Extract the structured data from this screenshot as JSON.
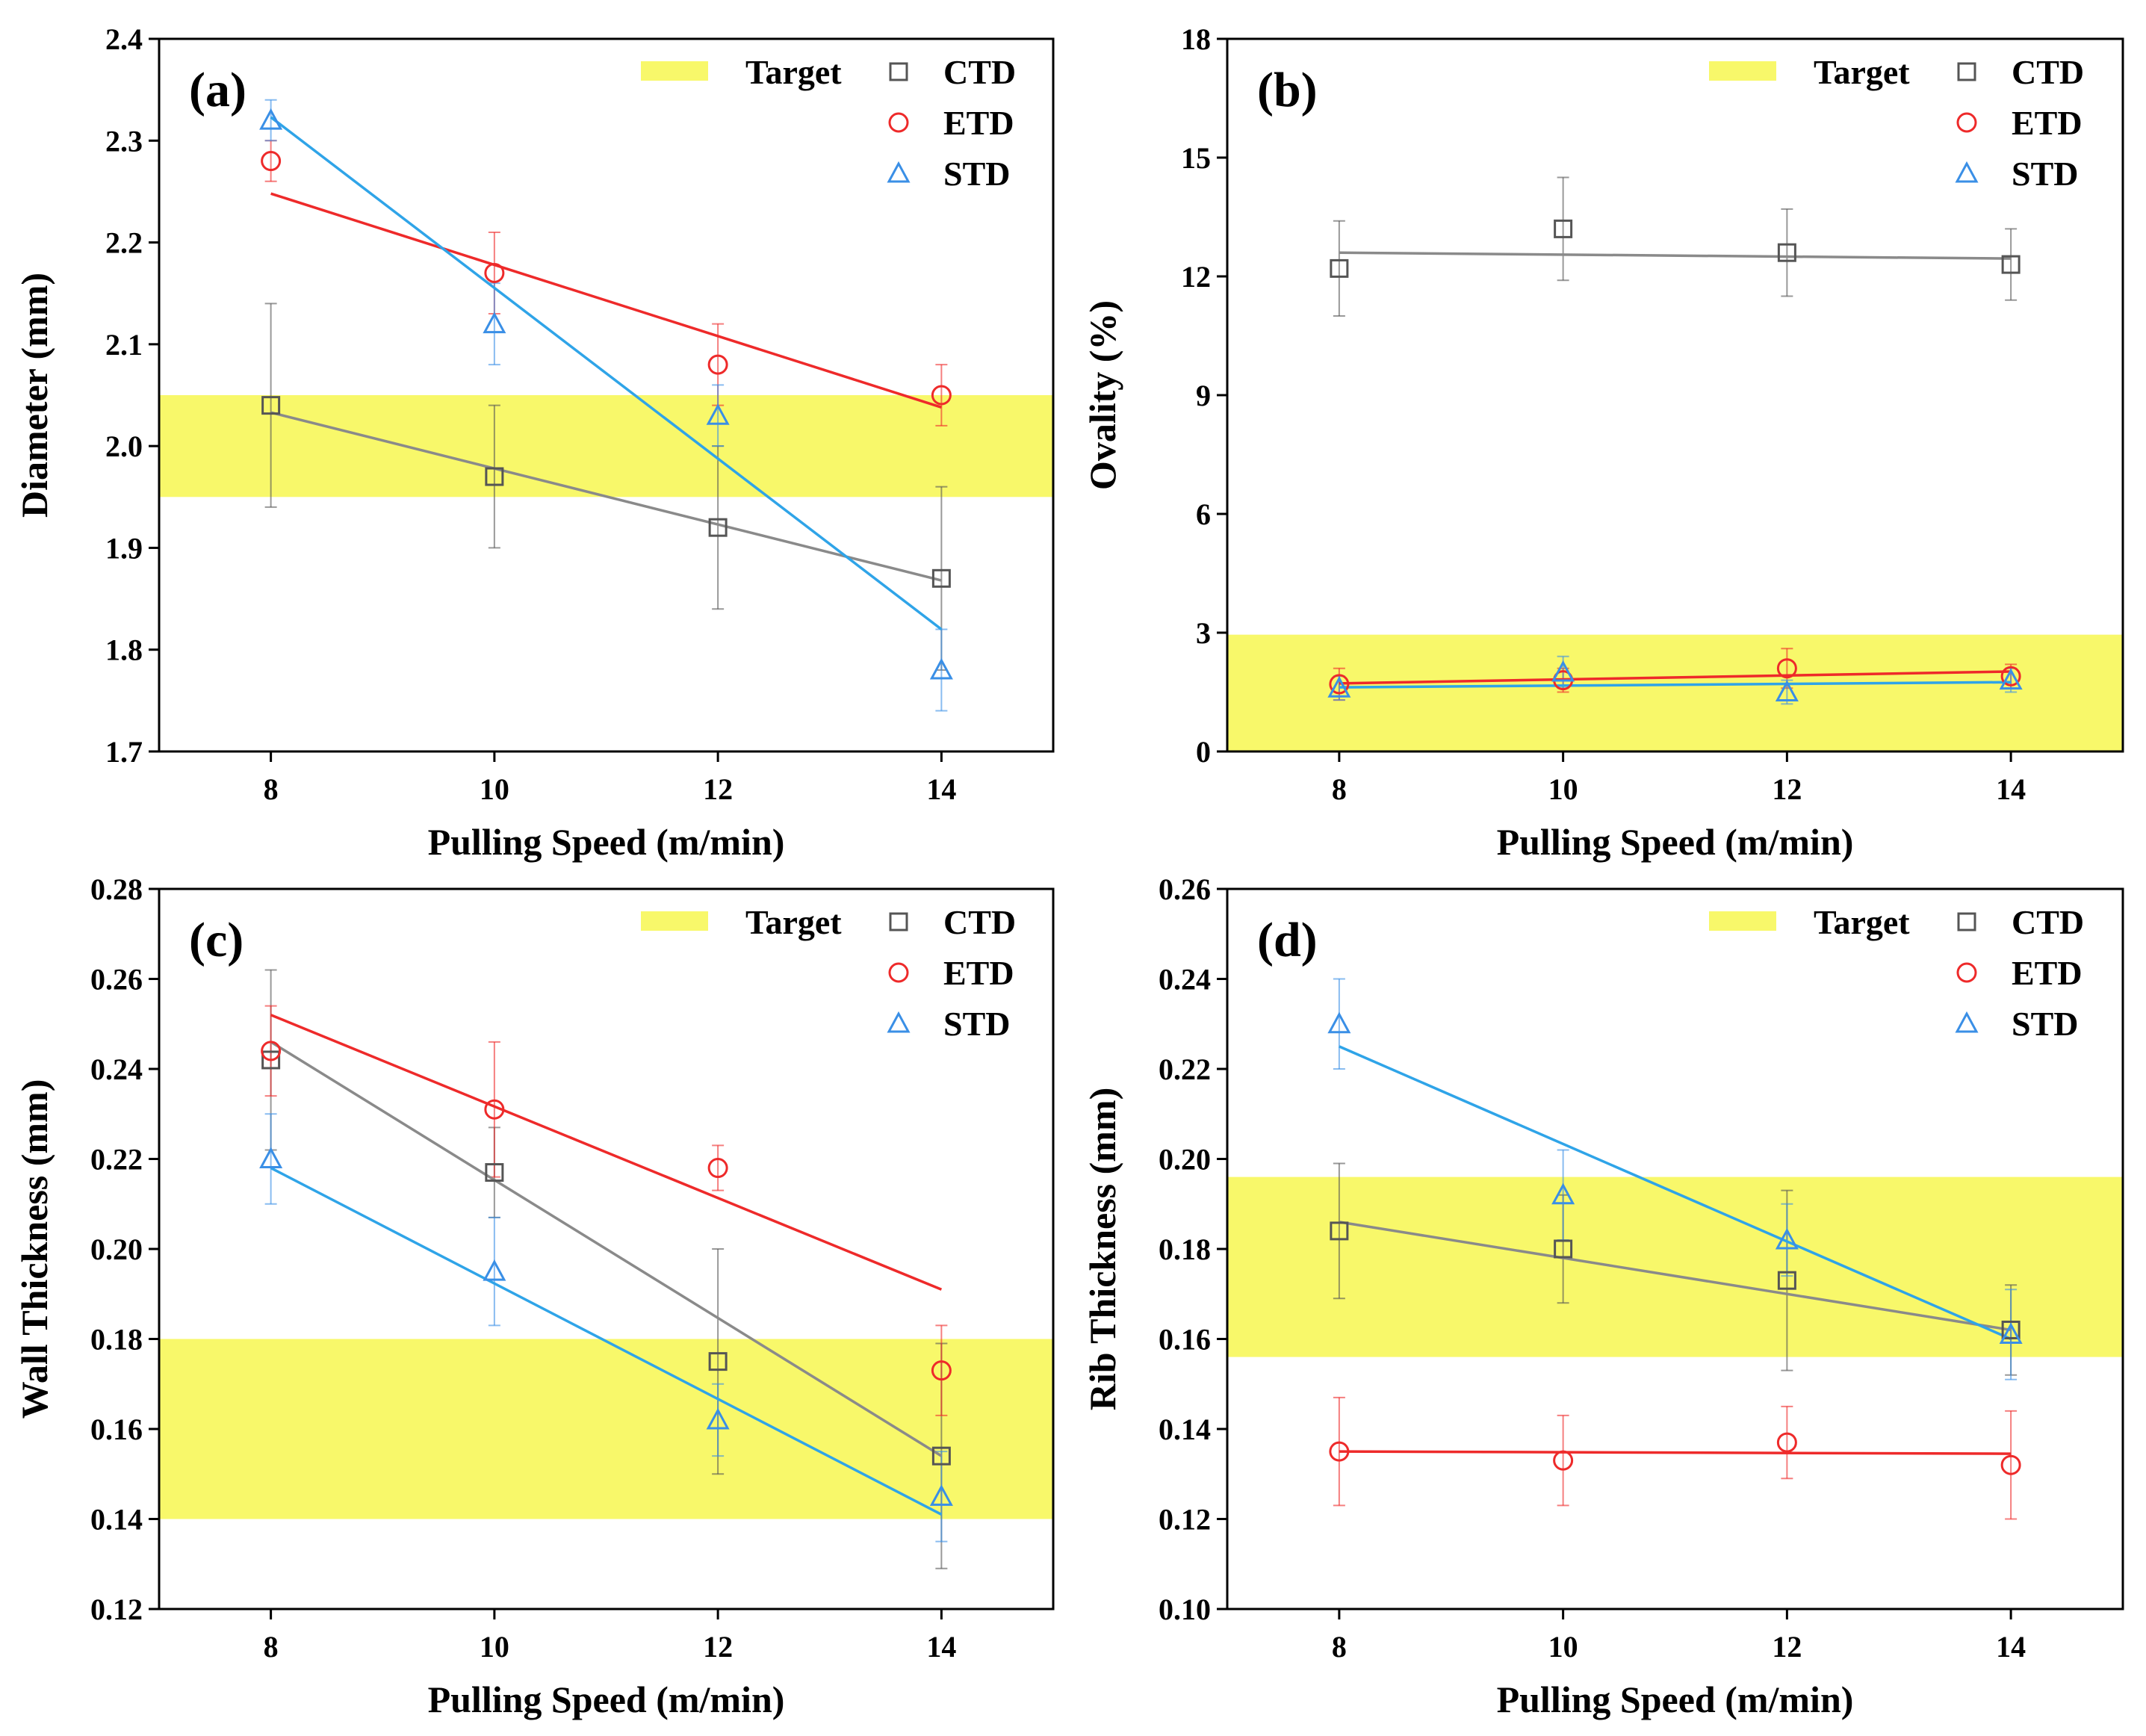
{
  "colors": {
    "CTD": "#555555",
    "ETD": "#ee2a2a",
    "STD": "#3a8fe6",
    "target": "#f8f86a",
    "CTD_fit": "#8a8a8a",
    "ETD_fit": "#ee2a2a",
    "STD_fit": "#2fa4e8"
  },
  "chart_data": [
    {
      "type": "scatter",
      "panel_label": "(a)",
      "xlabel": "Pulling Speed (m/min)",
      "ylabel": "Diameter (mm)",
      "xlim": [
        7,
        15
      ],
      "ylim": [
        1.7,
        2.4
      ],
      "xticks": [
        8,
        10,
        12,
        14
      ],
      "yticks": [
        1.7,
        1.8,
        1.9,
        2.0,
        2.1,
        2.2,
        2.3,
        2.4
      ],
      "ytick_labels": [
        "1.7",
        "1.8",
        "1.9",
        "2.0",
        "2.1",
        "2.2",
        "2.3",
        "2.4"
      ],
      "target_band": [
        1.95,
        2.05
      ],
      "legend": [
        "Target",
        "CTD",
        "ETD",
        "STD"
      ],
      "series": [
        {
          "name": "CTD",
          "marker": "square",
          "x": [
            8,
            10,
            12,
            14
          ],
          "values": [
            2.04,
            1.97,
            1.92,
            1.87
          ],
          "errors": [
            0.1,
            0.07,
            0.08,
            0.09
          ],
          "fit": [
            [
              8,
              2.033
            ],
            [
              14,
              1.868
            ]
          ]
        },
        {
          "name": "ETD",
          "marker": "circle",
          "x": [
            8,
            10,
            12,
            14
          ],
          "values": [
            2.28,
            2.17,
            2.08,
            2.05
          ],
          "errors": [
            0.02,
            0.04,
            0.04,
            0.03
          ],
          "fit": [
            [
              8,
              2.248
            ],
            [
              14,
              2.038
            ]
          ]
        },
        {
          "name": "STD",
          "marker": "triangle",
          "x": [
            8,
            10,
            12,
            14
          ],
          "values": [
            2.32,
            2.12,
            2.03,
            1.78
          ],
          "errors": [
            0.02,
            0.04,
            0.03,
            0.04
          ],
          "fit": [
            [
              8,
              2.323
            ],
            [
              14,
              1.82
            ]
          ]
        }
      ]
    },
    {
      "type": "scatter",
      "panel_label": "(b)",
      "xlabel": "Pulling Speed (m/min)",
      "ylabel": "Ovality (%)",
      "xlim": [
        7,
        15
      ],
      "ylim": [
        0,
        18
      ],
      "xticks": [
        8,
        10,
        12,
        14
      ],
      "yticks": [
        0,
        3,
        6,
        9,
        12,
        15,
        18
      ],
      "ytick_labels": [
        "0",
        "3",
        "6",
        "9",
        "12",
        "15",
        "18"
      ],
      "target_band": [
        0,
        2.95
      ],
      "legend": [
        "Target",
        "CTD",
        "ETD",
        "STD"
      ],
      "series": [
        {
          "name": "CTD",
          "marker": "square",
          "x": [
            8,
            10,
            12,
            14
          ],
          "values": [
            12.2,
            13.2,
            12.6,
            12.3
          ],
          "errors": [
            1.2,
            1.3,
            1.1,
            0.9
          ],
          "fit": [
            [
              8,
              12.6
            ],
            [
              14,
              12.45
            ]
          ]
        },
        {
          "name": "ETD",
          "marker": "circle",
          "x": [
            8,
            10,
            12,
            14
          ],
          "values": [
            1.7,
            1.8,
            2.1,
            1.9
          ],
          "errors": [
            0.4,
            0.3,
            0.5,
            0.3
          ],
          "fit": [
            [
              8,
              1.72
            ],
            [
              14,
              2.02
            ]
          ]
        },
        {
          "name": "STD",
          "marker": "triangle",
          "x": [
            8,
            10,
            12,
            14
          ],
          "values": [
            1.6,
            2.0,
            1.5,
            1.8
          ],
          "errors": [
            0.3,
            0.4,
            0.3,
            0.3
          ],
          "fit": [
            [
              8,
              1.62
            ],
            [
              14,
              1.75
            ]
          ]
        }
      ]
    },
    {
      "type": "scatter",
      "panel_label": "(c)",
      "xlabel": "Pulling Speed (m/min)",
      "ylabel": "Wall Thickness (mm)",
      "xlim": [
        7,
        15
      ],
      "ylim": [
        0.12,
        0.28
      ],
      "xticks": [
        8,
        10,
        12,
        14
      ],
      "yticks": [
        0.12,
        0.14,
        0.16,
        0.18,
        0.2,
        0.22,
        0.24,
        0.26,
        0.28
      ],
      "ytick_labels": [
        "0.12",
        "0.14",
        "0.16",
        "0.18",
        "0.20",
        "0.22",
        "0.24",
        "0.26",
        "0.28"
      ],
      "target_band": [
        0.14,
        0.18
      ],
      "legend": [
        "Target",
        "CTD",
        "ETD",
        "STD"
      ],
      "series": [
        {
          "name": "CTD",
          "marker": "square",
          "x": [
            8,
            10,
            12,
            14
          ],
          "values": [
            0.242,
            0.217,
            0.175,
            0.154
          ],
          "errors": [
            0.02,
            0.01,
            0.025,
            0.025
          ],
          "fit": [
            [
              8,
              0.246
            ],
            [
              14,
              0.154
            ]
          ]
        },
        {
          "name": "ETD",
          "marker": "circle",
          "x": [
            8,
            10,
            12,
            14
          ],
          "values": [
            0.244,
            0.231,
            0.218,
            0.173
          ],
          "errors": [
            0.01,
            0.015,
            0.005,
            0.01
          ],
          "fit": [
            [
              8,
              0.252
            ],
            [
              14,
              0.191
            ]
          ]
        },
        {
          "name": "STD",
          "marker": "triangle",
          "x": [
            8,
            10,
            12,
            14
          ],
          "values": [
            0.22,
            0.195,
            0.162,
            0.145
          ],
          "errors": [
            0.01,
            0.012,
            0.008,
            0.01
          ],
          "fit": [
            [
              8,
              0.218
            ],
            [
              14,
              0.141
            ]
          ]
        }
      ]
    },
    {
      "type": "scatter",
      "panel_label": "(d)",
      "xlabel": "Pulling Speed (m/min)",
      "ylabel": "Rib Thickness (mm)",
      "xlim": [
        7,
        15
      ],
      "ylim": [
        0.1,
        0.26
      ],
      "xticks": [
        8,
        10,
        12,
        14
      ],
      "yticks": [
        0.1,
        0.12,
        0.14,
        0.16,
        0.18,
        0.2,
        0.22,
        0.24,
        0.26
      ],
      "ytick_labels": [
        "0.10",
        "0.12",
        "0.14",
        "0.16",
        "0.18",
        "0.20",
        "0.22",
        "0.24",
        "0.26"
      ],
      "target_band": [
        0.156,
        0.196
      ],
      "legend": [
        "Target",
        "CTD",
        "ETD",
        "STD"
      ],
      "series": [
        {
          "name": "CTD",
          "marker": "square",
          "x": [
            8,
            10,
            12,
            14
          ],
          "values": [
            0.184,
            0.18,
            0.173,
            0.162
          ],
          "errors": [
            0.015,
            0.012,
            0.02,
            0.01
          ],
          "fit": [
            [
              8,
              0.186
            ],
            [
              14,
              0.162
            ]
          ]
        },
        {
          "name": "ETD",
          "marker": "circle",
          "x": [
            8,
            10,
            12,
            14
          ],
          "values": [
            0.135,
            0.133,
            0.137,
            0.132
          ],
          "errors": [
            0.012,
            0.01,
            0.008,
            0.012
          ],
          "fit": [
            [
              8,
              0.135
            ],
            [
              14,
              0.1345
            ]
          ]
        },
        {
          "name": "STD",
          "marker": "triangle",
          "x": [
            8,
            10,
            12,
            14
          ],
          "values": [
            0.23,
            0.192,
            0.182,
            0.161
          ],
          "errors": [
            0.01,
            0.01,
            0.008,
            0.01
          ],
          "fit": [
            [
              8,
              0.225
            ],
            [
              14,
              0.16
            ]
          ]
        }
      ]
    }
  ]
}
